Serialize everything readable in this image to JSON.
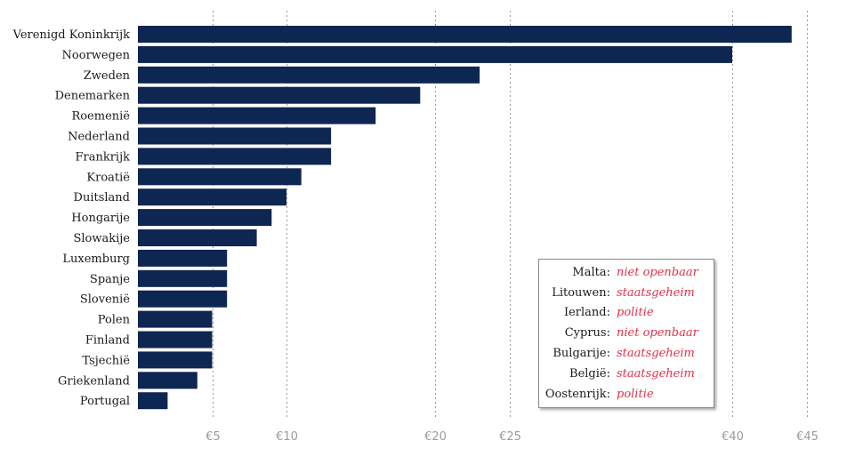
{
  "chart_data": {
    "type": "bar",
    "orientation": "horizontal",
    "categories": [
      "Verenigd Koninkrijk",
      "Noorwegen",
      "Zweden",
      "Denemarken",
      "Roemenië",
      "Nederland",
      "Frankrijk",
      "Kroatië",
      "Duitsland",
      "Hongarije",
      "Slowakije",
      "Luxemburg",
      "Spanje",
      "Slovenië",
      "Polen",
      "Finland",
      "Tsjechië",
      "Griekenland",
      "Portugal"
    ],
    "values": [
      44,
      40,
      23,
      19,
      16,
      13,
      13,
      11,
      10,
      9,
      8,
      6,
      6,
      6,
      5,
      5,
      5,
      4,
      2
    ],
    "xlim": [
      0,
      45
    ],
    "ticks": [
      {
        "value": 5,
        "label": "€5"
      },
      {
        "value": 10,
        "label": "€10"
      },
      {
        "value": 20,
        "label": "€20"
      },
      {
        "value": 25,
        "label": "€25"
      },
      {
        "value": 40,
        "label": "€40"
      },
      {
        "value": 45,
        "label": "€45"
      }
    ],
    "grid": "vertical dashed",
    "bar_color": "#0e2652",
    "annotation_color": "#e0314a",
    "notes": [
      {
        "country": "Malta:",
        "reason": "niet openbaar"
      },
      {
        "country": "Litouwen:",
        "reason": "staatsgeheim"
      },
      {
        "country": "Ierland:",
        "reason": "politie"
      },
      {
        "country": "Cyprus:",
        "reason": "niet openbaar"
      },
      {
        "country": "Bulgarije:",
        "reason": "staatsgeheim"
      },
      {
        "country": "België:",
        "reason": "staatsgeheim"
      },
      {
        "country": "Oostenrijk:",
        "reason": "politie"
      }
    ]
  }
}
